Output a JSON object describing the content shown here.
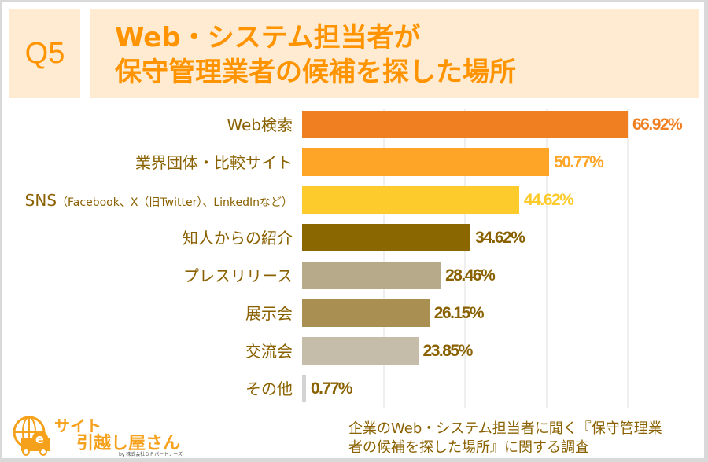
{
  "header": {
    "question": "Q5",
    "title_lines": [
      "Web・システム担当者が",
      "保守管理業者の候補を探した場所"
    ]
  },
  "chart_data": {
    "type": "bar",
    "orientation": "horizontal",
    "title": "Web・システム担当者が保守管理業者の候補を探した場所",
    "categories": [
      "Web検索",
      "業界団体・比較サイト",
      "SNS（Facebook、X（旧Twitter）、LinkedInなど）",
      "知人からの紹介",
      "プレスリリース",
      "展示会",
      "交流会",
      "その他"
    ],
    "category_main": [
      "Web検索",
      "業界団体・比較サイト",
      "SNS",
      "知人からの紹介",
      "プレスリリース",
      "展示会",
      "交流会",
      "その他"
    ],
    "category_sub": [
      "",
      "",
      "（Facebook、X（旧Twitter）、LinkedInなど）",
      "",
      "",
      "",
      "",
      ""
    ],
    "values": [
      66.92,
      50.77,
      44.62,
      34.62,
      28.46,
      26.15,
      23.85,
      0.77
    ],
    "value_labels": [
      "66.92%",
      "50.77%",
      "44.62%",
      "34.62%",
      "28.46%",
      "26.15%",
      "23.85%",
      "0.77%"
    ],
    "bar_colors": [
      "#f07f22",
      "#fea527",
      "#fecb2c",
      "#8a6700",
      "#b7aa8b",
      "#a98f52",
      "#c5bdaa",
      "#d3d3d3"
    ],
    "label_colors": [
      "#f07f22",
      "#fea527",
      "#fecb2c",
      "#8a6100",
      "#8a6100",
      "#8a6100",
      "#8a6100",
      "#8a6100"
    ],
    "xlim": [
      0,
      66.92
    ],
    "grid": true,
    "unit": "%"
  },
  "logo": {
    "line1": "サイト",
    "line2": "引越し屋さん",
    "sub": "by 株式会社ＤＰパートナーズ"
  },
  "source": {
    "lines": [
      "企業のWeb・システム担当者に聞く『保守管理業",
      "者の候補を探した場所』に関する調査"
    ]
  }
}
